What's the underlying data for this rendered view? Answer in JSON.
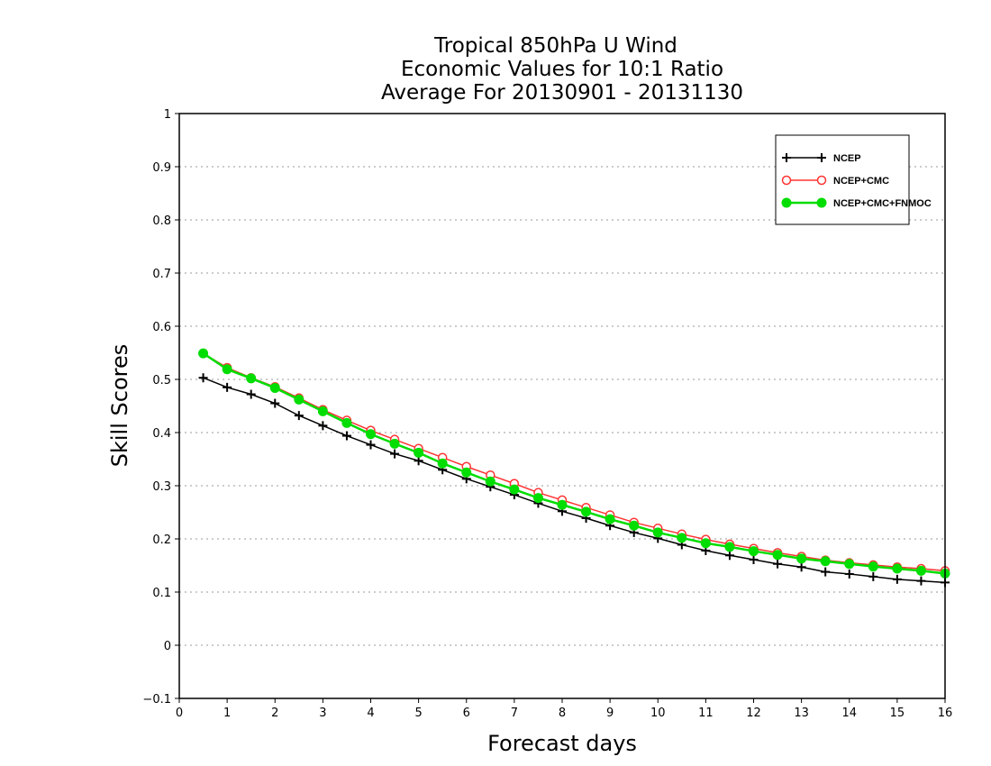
{
  "chart_data": {
    "type": "line",
    "title": [
      "Tropical 850hPa U Wind",
      "Economic Values for 10:1 Ratio",
      "Average For 20130901 - 20131130"
    ],
    "xlabel": "Forecast days",
    "ylabel": "Skill Scores",
    "xlim": [
      0,
      16
    ],
    "ylim": [
      -0.1,
      1
    ],
    "xticks": [
      "0",
      "1",
      "2",
      "3",
      "4",
      "5",
      "6",
      "7",
      "8",
      "9",
      "10",
      "11",
      "12",
      "13",
      "14",
      "15",
      "16"
    ],
    "yticks": [
      "−0.1",
      "0",
      "0.1",
      "0.2",
      "0.3",
      "0.4",
      "0.5",
      "0.6",
      "0.7",
      "0.8",
      "0.9",
      "1"
    ],
    "grid": "horizontal dotted",
    "legend_position": "top-right",
    "x": [
      0.5,
      1,
      1.5,
      2,
      2.5,
      3,
      3.5,
      4,
      4.5,
      5,
      5.5,
      6,
      6.5,
      7,
      7.5,
      8,
      8.5,
      9,
      9.5,
      10,
      10.5,
      11,
      11.5,
      12,
      12.5,
      13,
      13.5,
      14,
      14.5,
      15,
      15.5,
      16
    ],
    "series": [
      {
        "name": "NCEP",
        "color": "#000000",
        "marker": "plus",
        "values": [
          0.503,
          0.485,
          0.472,
          0.455,
          0.432,
          0.413,
          0.394,
          0.377,
          0.36,
          0.347,
          0.33,
          0.313,
          0.298,
          0.283,
          0.267,
          0.252,
          0.239,
          0.225,
          0.212,
          0.201,
          0.189,
          0.178,
          0.169,
          0.161,
          0.153,
          0.147,
          0.138,
          0.134,
          0.129,
          0.124,
          0.121,
          0.118
        ]
      },
      {
        "name": "NCEP+CMC",
        "color": "#ff3333",
        "marker": "open-circle",
        "values": [
          0.549,
          0.522,
          0.503,
          0.486,
          0.465,
          0.443,
          0.423,
          0.404,
          0.387,
          0.37,
          0.353,
          0.336,
          0.32,
          0.304,
          0.287,
          0.273,
          0.259,
          0.245,
          0.231,
          0.22,
          0.209,
          0.199,
          0.19,
          0.182,
          0.174,
          0.167,
          0.16,
          0.155,
          0.151,
          0.147,
          0.144,
          0.14
        ]
      },
      {
        "name": "NCEP+CMC+FNMOC",
        "color": "#00dd00",
        "marker": "filled-circle",
        "values": [
          0.549,
          0.519,
          0.502,
          0.484,
          0.462,
          0.44,
          0.418,
          0.397,
          0.379,
          0.362,
          0.342,
          0.325,
          0.308,
          0.293,
          0.277,
          0.264,
          0.251,
          0.237,
          0.225,
          0.212,
          0.202,
          0.192,
          0.185,
          0.177,
          0.17,
          0.163,
          0.158,
          0.153,
          0.148,
          0.144,
          0.14,
          0.135
        ]
      }
    ]
  }
}
